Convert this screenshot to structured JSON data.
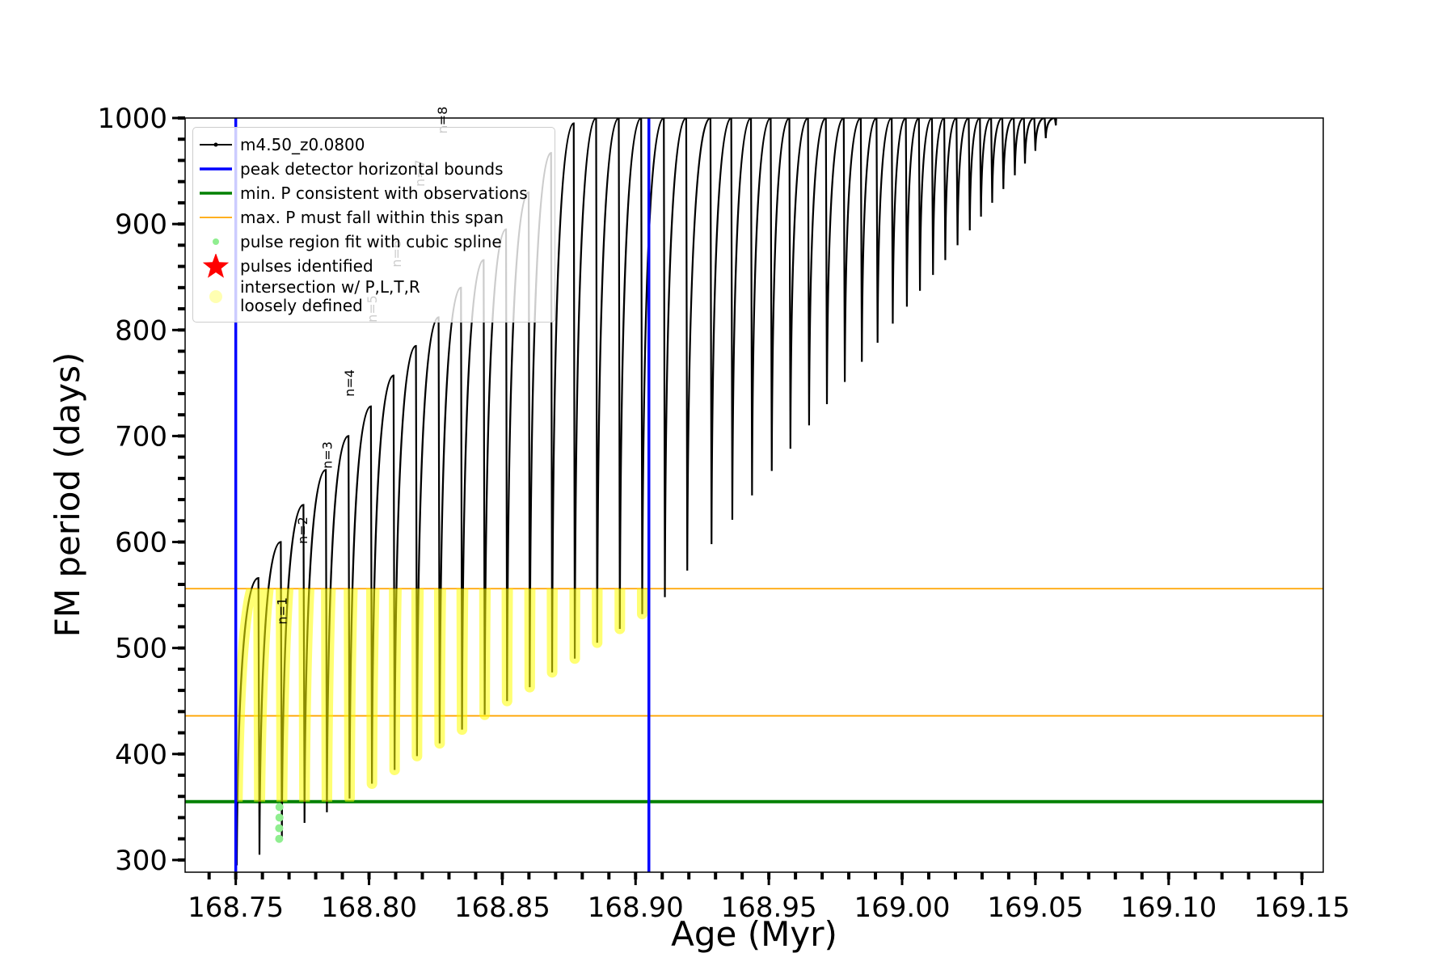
{
  "chart_data": {
    "type": "line",
    "xlabel": "Age (Myr)",
    "ylabel": "FM period (days)",
    "xlim": [
      168.731,
      169.158
    ],
    "ylim": [
      288.5,
      1000
    ],
    "xticks": [
      168.75,
      {
        "value": 168.8,
        "label": "168.80"
      },
      168.85,
      {
        "value": 168.9,
        "label": "168.90"
      },
      168.95,
      {
        "value": 169.0,
        "label": "169.00"
      },
      169.05,
      {
        "value": 169.1,
        "label": "169.10"
      },
      169.15
    ],
    "yticks": [
      300,
      400,
      500,
      600,
      700,
      800,
      900,
      1000
    ],
    "xminor": 0.01,
    "yminor": 20,
    "legend": "upper left",
    "series": [
      {
        "name": "m4.50_z0.0800",
        "color": "#000000",
        "x": [
          168.7504,
          168.7585,
          168.7589,
          168.7669,
          168.7673,
          168.7754,
          168.7758,
          168.7838,
          168.7842,
          168.7923,
          168.7927,
          168.8007,
          168.8011,
          168.8092,
          168.8096,
          168.8176,
          168.818,
          168.8261,
          168.8265,
          168.8345,
          168.8349,
          168.843,
          168.8434,
          168.8514,
          168.8518,
          168.8599,
          168.8603,
          168.8683,
          168.8687,
          168.8768,
          168.8772,
          168.8852,
          168.8856,
          168.8937,
          168.8941,
          168.9021,
          168.9025,
          168.9106,
          168.911,
          168.919,
          168.9194,
          168.9281,
          168.9285,
          168.9359,
          168.9363,
          168.9433,
          168.9437,
          168.9507,
          168.9511,
          168.9577,
          168.9581,
          168.9647,
          168.9651,
          168.9714,
          168.9718,
          168.9781,
          168.9785,
          168.9845,
          168.9849,
          168.9904,
          168.9908,
          168.9961,
          168.9965,
          169.0014,
          169.0018,
          169.0063,
          169.0067,
          169.0112,
          169.0116,
          169.0158,
          169.0162,
          169.0204,
          169.0208,
          169.025,
          169.0254,
          169.0292,
          169.0296,
          169.0334,
          169.0338,
          169.0376,
          169.038,
          169.0419,
          169.0423,
          169.0457,
          169.0461,
          169.0496,
          169.05,
          169.0535,
          169.0539,
          169.0573,
          169.0577,
          169.058
        ],
        "values": [
          295,
          566,
          305,
          600,
          320,
          635,
          335,
          668,
          345,
          700,
          358,
          728,
          372,
          757,
          385,
          785,
          398,
          812,
          410,
          840,
          423,
          866,
          437,
          895,
          450,
          930,
          463,
          967,
          477,
          995,
          490,
          1000,
          505,
          1000,
          518,
          1000,
          532,
          1000,
          548,
          1000,
          573,
          1000,
          598,
          1000,
          621,
          1000,
          644,
          1000,
          667,
          1000,
          688,
          1000,
          710,
          1000,
          730,
          1000,
          751,
          1000,
          770,
          1000,
          788,
          1000,
          806,
          1000,
          822,
          1000,
          837,
          1000,
          852,
          1000,
          866,
          1000,
          880,
          1000,
          894,
          1000,
          907,
          1000,
          920,
          1000,
          933,
          1000,
          946,
          1000,
          957,
          1000,
          969,
          1000,
          981,
          1000,
          993,
          1000
        ]
      },
      {
        "name": "pulse region fit with cubic spline",
        "color": "#90ee90",
        "marker": "dot",
        "x": [
          168.7663,
          168.7663,
          168.7664,
          168.7664
        ],
        "values": [
          320,
          330,
          340,
          350
        ]
      },
      {
        "name": "pulses identified",
        "color": "#ff0000",
        "marker": "star",
        "x": [],
        "values": []
      },
      {
        "name": "intersection w/ P,L,T,R\nloosely defined",
        "color": "#ffff00",
        "marker": "circle",
        "band": [
          355,
          556
        ]
      }
    ],
    "vlines": [
      {
        "name": "peak detector horizontal bounds",
        "color": "#0000ff",
        "values": [
          168.75,
          168.905
        ]
      }
    ],
    "hlines": [
      {
        "name": "min. P consistent with observations",
        "color": "#008000",
        "values": [
          355
        ]
      },
      {
        "name": "max. P must fall within this span",
        "color": "#ffa500",
        "values": [
          556,
          436
        ]
      }
    ],
    "annotations": [
      {
        "text": "n=1",
        "x": 168.769,
        "y": 535
      },
      {
        "text": "n=2",
        "x": 168.7768,
        "y": 611
      },
      {
        "text": "n=3",
        "x": 168.786,
        "y": 682
      },
      {
        "text": "n=4",
        "x": 168.7944,
        "y": 750
      },
      {
        "text": "n=5",
        "x": 168.8028,
        "y": 820
      },
      {
        "text": "n=6",
        "x": 168.812,
        "y": 872
      },
      {
        "text": "n=7",
        "x": 168.8208,
        "y": 948
      },
      {
        "text": "n=8",
        "x": 168.8292,
        "y": 998
      }
    ]
  }
}
